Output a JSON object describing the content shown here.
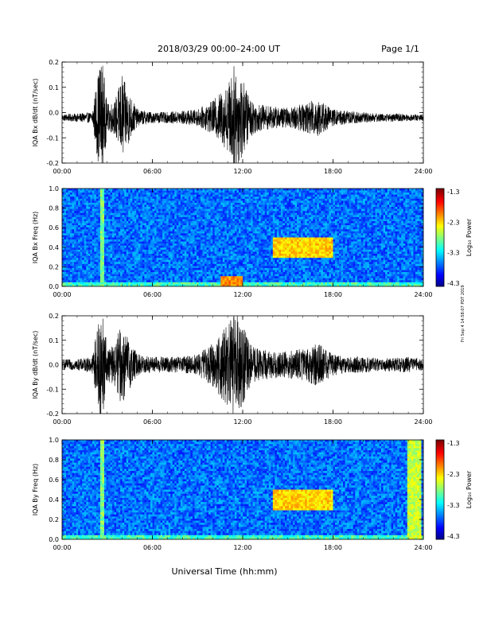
{
  "header": {
    "title": "2018/03/29  00:00–24:00 UT",
    "page": "Page 1/1"
  },
  "footer": {
    "xlabel": "Universal Time (hh:mm)",
    "side_note": "Fri Sep 4 14:58:07 PDT 2019"
  },
  "colorbar": {
    "label": "Log₁₀ Power",
    "ticks": [
      "-1.3",
      "-2.3",
      "-3.3",
      "-4.3"
    ]
  },
  "chart_data": [
    {
      "type": "line",
      "ylabel": "IQA Bx dB/dt (nT/sec)",
      "ylim": [
        -0.2,
        0.2
      ],
      "yticks": [
        "0.2",
        "0.1",
        "0.0",
        "-0.1",
        "-0.2"
      ],
      "xticks": [
        "00:00",
        "06:00",
        "12:00",
        "18:00",
        "24:00"
      ],
      "x_hours": [
        0,
        1,
        2,
        2.5,
        2.7,
        3,
        3.5,
        4,
        4.2,
        5,
        6,
        7,
        8,
        9,
        10,
        10.5,
        11,
        11.5,
        12,
        12.5,
        13,
        14,
        15,
        16,
        17,
        18,
        19,
        20,
        21,
        22,
        23,
        24
      ],
      "envelope": [
        0.012,
        0.015,
        0.02,
        0.2,
        0.2,
        0.05,
        0.06,
        0.16,
        0.12,
        0.03,
        0.02,
        0.02,
        0.025,
        0.03,
        0.06,
        0.09,
        0.12,
        0.2,
        0.14,
        0.07,
        0.05,
        0.04,
        0.035,
        0.05,
        0.07,
        0.03,
        0.025,
        0.02,
        0.015,
        0.015,
        0.012,
        0.012
      ]
    },
    {
      "type": "heatmap",
      "ylabel": "IQA Bx Freq (Hz)",
      "ylim": [
        0.0,
        1.0
      ],
      "yticks": [
        "1.0",
        "0.8",
        "0.6",
        "0.4",
        "0.2",
        "0.0"
      ],
      "xticks": [
        "00:00",
        "06:00",
        "12:00",
        "18:00",
        "24:00"
      ],
      "zlim": [
        -4.3,
        -1.3
      ],
      "features": [
        {
          "label": "Pc1 band",
          "x_hours": [
            14,
            18
          ],
          "freq_hz": [
            0.3,
            0.5
          ],
          "log_power": -2.3
        },
        {
          "label": "broadband burst",
          "x_hours": [
            2.5,
            2.8
          ],
          "freq_hz": [
            0.0,
            1.0
          ],
          "log_power": -2.8
        },
        {
          "label": "low-frequency enhancement",
          "x_hours": [
            10.5,
            12
          ],
          "freq_hz": [
            0.0,
            0.1
          ],
          "log_power": -2.1
        }
      ]
    },
    {
      "type": "line",
      "ylabel": "IQA By dB/dt (nT/sec)",
      "ylim": [
        -0.2,
        0.2
      ],
      "yticks": [
        "0.2",
        "0.1",
        "0.0",
        "-0.1",
        "-0.2"
      ],
      "xticks": [
        "00:00",
        "06:00",
        "12:00",
        "18:00",
        "24:00"
      ],
      "x_hours": [
        0,
        1,
        2,
        2.5,
        2.7,
        3,
        3.5,
        4,
        4.2,
        5,
        6,
        7,
        8,
        9,
        10,
        10.5,
        11,
        11.5,
        12,
        12.5,
        13,
        14,
        15,
        16,
        17,
        18,
        19,
        20,
        21,
        22,
        23,
        24
      ],
      "envelope": [
        0.02,
        0.02,
        0.03,
        0.2,
        0.2,
        0.06,
        0.08,
        0.16,
        0.12,
        0.04,
        0.03,
        0.03,
        0.03,
        0.04,
        0.08,
        0.12,
        0.15,
        0.2,
        0.15,
        0.08,
        0.06,
        0.05,
        0.05,
        0.06,
        0.08,
        0.04,
        0.03,
        0.03,
        0.025,
        0.025,
        0.03,
        0.02
      ]
    },
    {
      "type": "heatmap",
      "ylabel": "IQA By Freq (Hz)",
      "ylim": [
        0.0,
        1.0
      ],
      "yticks": [
        "1.0",
        "0.8",
        "0.6",
        "0.4",
        "0.2",
        "0.0"
      ],
      "xticks": [
        "00:00",
        "06:00",
        "12:00",
        "18:00",
        "24:00"
      ],
      "zlim": [
        -4.3,
        -1.3
      ],
      "features": [
        {
          "label": "Pc1 band",
          "x_hours": [
            14,
            18
          ],
          "freq_hz": [
            0.3,
            0.5
          ],
          "log_power": -2.3
        },
        {
          "label": "broadband burst",
          "x_hours": [
            2.5,
            2.8
          ],
          "freq_hz": [
            0.0,
            1.0
          ],
          "log_power": -2.8
        },
        {
          "label": "broadband interference",
          "x_hours": [
            23.0,
            23.8
          ],
          "freq_hz": [
            0.0,
            1.0
          ],
          "log_power": -2.6
        }
      ]
    }
  ]
}
